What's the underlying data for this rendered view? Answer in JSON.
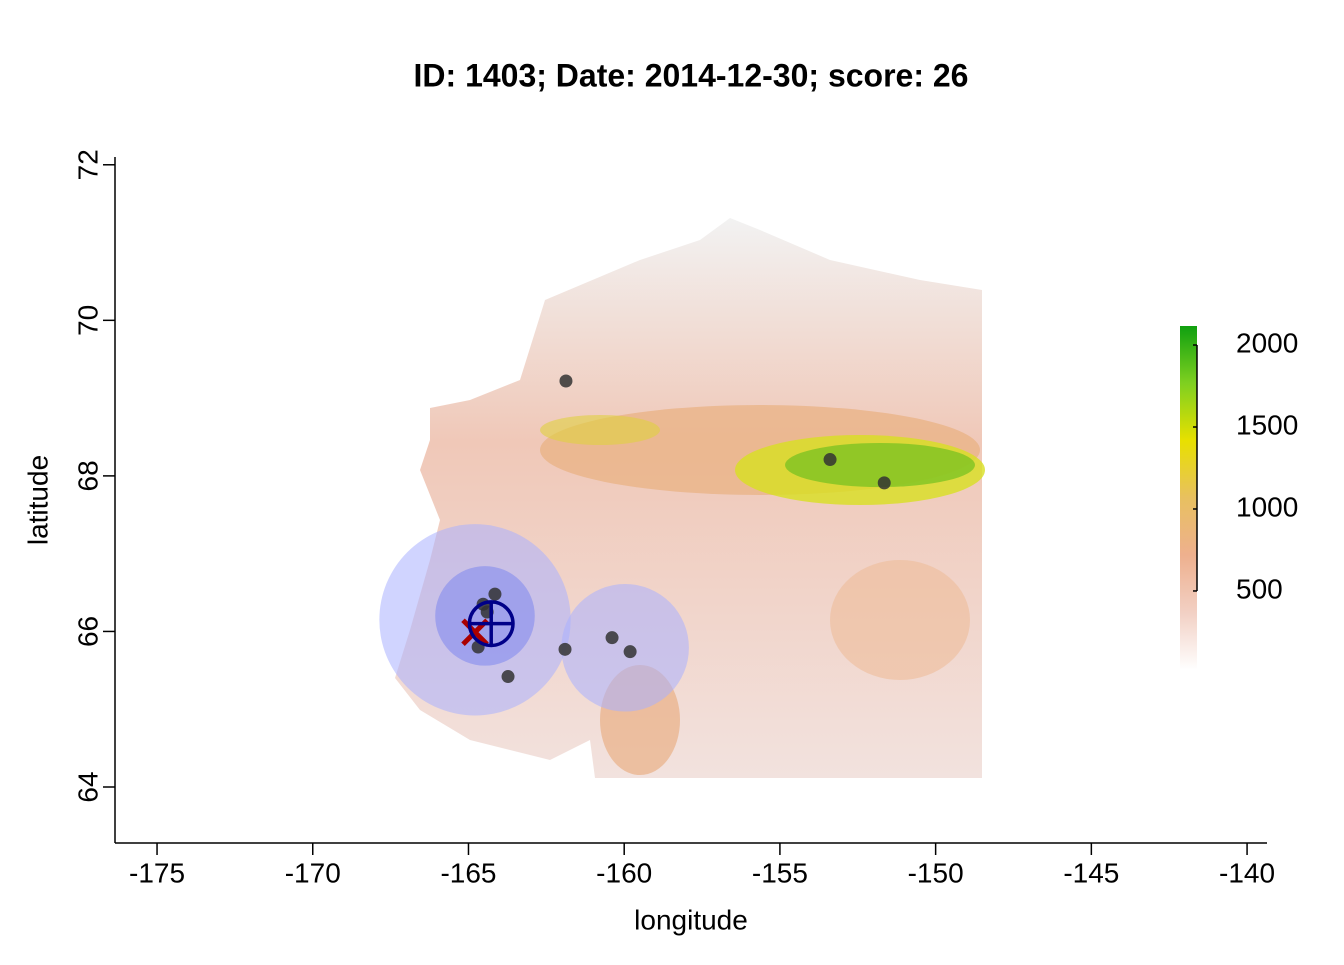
{
  "chart_data": {
    "type": "scatter",
    "title": "ID: 1403;  Date: 2014-12-30;  score: 26",
    "x_label": "longitude",
    "y_label": "latitude",
    "xlim": [
      -176.35,
      -139.36
    ],
    "ylim": [
      63.28,
      72.1
    ],
    "xticks": [
      -175,
      -170,
      -165,
      -160,
      -155,
      -150,
      -145,
      -140
    ],
    "yticks": [
      64,
      66,
      68,
      70,
      72
    ],
    "x": [
      -161.87,
      -153.39,
      -151.65,
      -164.15,
      -164.53,
      -164.4,
      -164.69,
      -163.73,
      -161.9,
      -160.39,
      -159.81
    ],
    "values": [
      69.22,
      68.21,
      67.91,
      66.48,
      66.35,
      66.25,
      65.8,
      65.42,
      65.77,
      65.92,
      65.74
    ],
    "color": "#333333",
    "buffers": [
      {
        "lon": -164.79,
        "lat": 66.15,
        "radius": 1.23,
        "color": "#aab0ff"
      },
      {
        "lon": -159.97,
        "lat": 65.79,
        "radius": 0.82,
        "color": "#aab0ff"
      },
      {
        "lon": -164.47,
        "lat": 66.2,
        "radius": 0.64,
        "color": "#7d86ee"
      }
    ],
    "estimate": {
      "lon": -164.27,
      "lat": 66.1,
      "radius": 0.28,
      "color": "#000088"
    },
    "truth": {
      "lon": -164.79,
      "lat": 65.99,
      "color": "#aa0000"
    },
    "colorbar": {
      "lim": [
        18,
        2116
      ],
      "ticks": [
        500,
        1000,
        1500,
        2000
      ],
      "colors": [
        "#ffffff",
        "#f2d0c4",
        "#eeb08e",
        "#e8c060",
        "#e8e000",
        "#7fd020",
        "#10a010"
      ]
    }
  }
}
